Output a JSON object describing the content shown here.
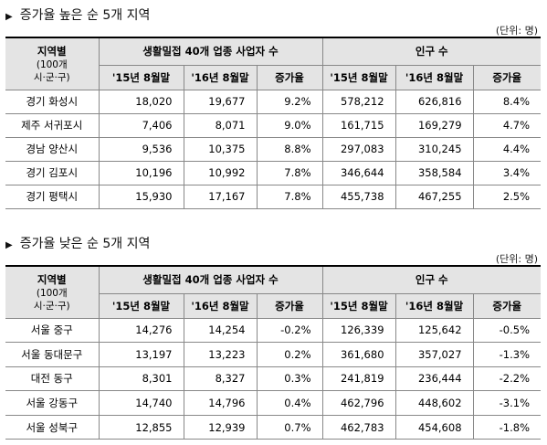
{
  "sections": [
    {
      "title": "증가율 높은 순 5개 지역",
      "unit": "(단위: 명)",
      "table": {
        "region_head": "지역별",
        "region_note": [
          "(100개",
          "시·군·구)"
        ],
        "groups": [
          "생활밀접 40개 업종 사업자 수",
          "인구 수"
        ],
        "subheads": [
          "'15년 8월말",
          "'16년 8월말",
          "증가율",
          "'15년 8월말",
          "'16년 8월말",
          "증가율"
        ],
        "rows": [
          [
            "경기 화성시",
            "18,020",
            "19,677",
            "9.2%",
            "578,212",
            "626,816",
            "8.4%"
          ],
          [
            "제주 서귀포시",
            "7,406",
            "8,071",
            "9.0%",
            "161,715",
            "169,279",
            "4.7%"
          ],
          [
            "경남 양산시",
            "9,536",
            "10,375",
            "8.8%",
            "297,083",
            "310,245",
            "4.4%"
          ],
          [
            "경기 김포시",
            "10,196",
            "10,992",
            "7.8%",
            "346,644",
            "358,584",
            "3.4%"
          ],
          [
            "경기 평택시",
            "15,930",
            "17,167",
            "7.8%",
            "455,738",
            "467,255",
            "2.5%"
          ]
        ]
      }
    },
    {
      "title": "증가율 낮은 순 5개 지역",
      "unit": "(단위: 명)",
      "table": {
        "region_head": "지역별",
        "region_note": [
          "(100개",
          "시·군·구)"
        ],
        "groups": [
          "생활밀접 40개 업종 사업자 수",
          "인구 수"
        ],
        "subheads": [
          "'15년 8월말",
          "'16년 8월말",
          "증가율",
          "'15년 8월말",
          "'16년 8월말",
          "증가율"
        ],
        "rows": [
          [
            "서울 중구",
            "14,276",
            "14,254",
            "-0.2%",
            "126,339",
            "125,642",
            "-0.5%"
          ],
          [
            "서울 동대문구",
            "13,197",
            "13,223",
            "0.2%",
            "361,680",
            "357,027",
            "-1.3%"
          ],
          [
            "대전 동구",
            "8,301",
            "8,327",
            "0.3%",
            "241,819",
            "236,444",
            "-2.2%"
          ],
          [
            "서울 강동구",
            "14,740",
            "14,796",
            "0.4%",
            "462,796",
            "448,602",
            "-3.1%"
          ],
          [
            "서울 성북구",
            "12,855",
            "12,939",
            "0.7%",
            "462,783",
            "454,608",
            "-1.8%"
          ]
        ]
      }
    }
  ]
}
